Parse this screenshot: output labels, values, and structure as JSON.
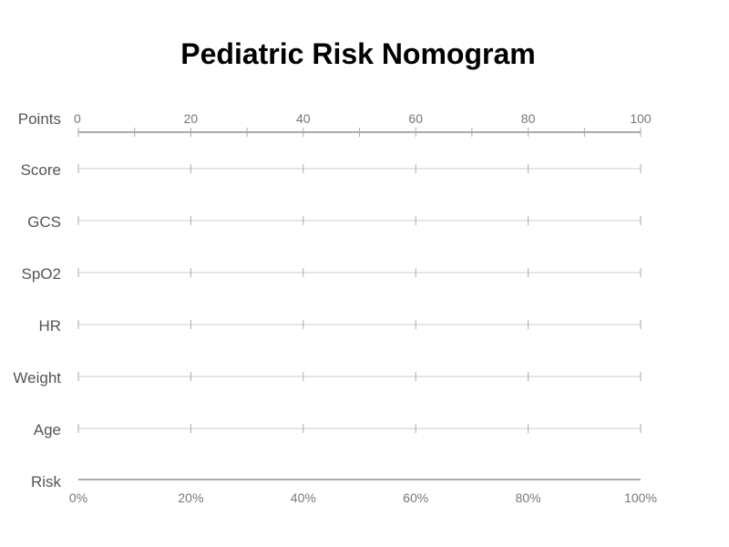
{
  "chart_data": {
    "type": "nomogram",
    "title": "Pediatric Risk Nomogram",
    "points_axis": {
      "label": "Points",
      "range": [
        0,
        100
      ],
      "tick_labels": [
        "0",
        "20",
        "40",
        "60",
        "80",
        "100"
      ],
      "major_ticks": [
        0,
        20,
        40,
        60,
        80,
        100
      ],
      "minor_ticks": [
        10,
        30,
        50,
        70,
        90
      ]
    },
    "variable_axes": [
      {
        "name": "Score",
        "range": [
          0,
          100
        ],
        "ticks": [
          0,
          20,
          40,
          60,
          80,
          100
        ]
      },
      {
        "name": "GCS",
        "range": [
          0,
          100
        ],
        "ticks": [
          0,
          20,
          40,
          60,
          80,
          100
        ]
      },
      {
        "name": "SpO2",
        "range": [
          0,
          100
        ],
        "ticks": [
          0,
          20,
          40,
          60,
          80,
          100
        ]
      },
      {
        "name": "HR",
        "range": [
          0,
          100
        ],
        "ticks": [
          0,
          20,
          40,
          60,
          80,
          100
        ]
      },
      {
        "name": "Weight",
        "range": [
          0,
          100
        ],
        "ticks": [
          0,
          20,
          40,
          60,
          80,
          100
        ]
      },
      {
        "name": "Age",
        "range": [
          0,
          100
        ],
        "ticks": [
          0,
          20,
          40,
          60,
          80,
          100
        ]
      }
    ],
    "risk_axis": {
      "label": "Risk",
      "range": [
        0,
        1
      ],
      "tick_values": [
        0,
        0.2,
        0.4,
        0.6,
        0.8,
        1.0
      ],
      "tick_labels": [
        "0%",
        "20%",
        "40%",
        "60%",
        "80%",
        "100%"
      ]
    },
    "colors": {
      "axis_line": "#aaaaaa",
      "tick": "#aaaaaa",
      "row_line": "#cccccc",
      "label_text": "#555555",
      "tick_text": "#777777",
      "title_text": "#000000"
    }
  }
}
